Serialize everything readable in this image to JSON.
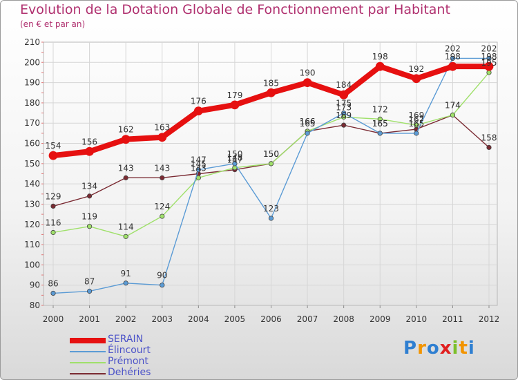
{
  "header": {
    "title": "Evolution de la Dotation Globale de Fonctionnement par Habitant",
    "subtitle": "(en € et par an)"
  },
  "logo": {
    "text": "Proxiti",
    "letters": [
      "P",
      "r",
      "o",
      "x",
      "i",
      "t",
      "i"
    ],
    "colors": [
      "#2f7fd1",
      "#f29400",
      "#2f7fd1",
      "#e02020",
      "#7cbf2a",
      "#f29400",
      "#2f7fd1"
    ]
  },
  "chart_data": {
    "type": "line",
    "title": "Evolution de la Dotation Globale de Fonctionnement par Habitant",
    "subtitle": "(en € et par an)",
    "xlabel": "",
    "ylabel": "",
    "ylim": [
      80,
      210
    ],
    "yticks": [
      80,
      90,
      100,
      110,
      120,
      130,
      140,
      150,
      160,
      170,
      180,
      190,
      200,
      210
    ],
    "categories": [
      "2000",
      "2001",
      "2002",
      "2003",
      "2004",
      "2005",
      "2006",
      "2007",
      "2008",
      "2009",
      "2010",
      "2011",
      "2012"
    ],
    "grid": true,
    "legend_position": "bottom-left",
    "series": [
      {
        "name": "Dehéries",
        "color": "#7a2a32",
        "values": [
          129,
          134,
          143,
          143,
          145,
          147,
          150,
          166,
          169,
          165,
          167,
          174,
          158
        ],
        "labels": [
          "129",
          "134",
          "143",
          "143",
          "145",
          "147",
          "150",
          "166",
          "169",
          "165",
          "167",
          "174",
          "158"
        ]
      },
      {
        "name": "Prémont",
        "color": "#9fe06a",
        "values": [
          116,
          119,
          114,
          124,
          143,
          148,
          150,
          166,
          173,
          172,
          169,
          174,
          195
        ],
        "labels": [
          "116",
          "119",
          "114",
          "124",
          "143",
          "148",
          "150",
          "166",
          "173",
          "172",
          "169",
          "174",
          "195"
        ]
      },
      {
        "name": "Élincourt",
        "color": "#5b9bd5",
        "values": [
          86,
          87,
          91,
          90,
          147,
          150,
          123,
          165,
          175,
          165,
          165,
          202,
          202
        ],
        "labels": [
          "86",
          "87",
          "91",
          "90",
          "147",
          "150",
          "123",
          "165",
          "175",
          "165",
          "165",
          "202",
          "202"
        ]
      },
      {
        "name": "SERAIN",
        "color": "#e61010",
        "values": [
          154,
          156,
          162,
          163,
          176,
          179,
          185,
          190,
          184,
          198,
          192,
          198,
          198
        ],
        "labels": [
          "154",
          "156",
          "162",
          "163",
          "176",
          "179",
          "185",
          "190",
          "184",
          "198",
          "192",
          "198",
          "198"
        ]
      }
    ],
    "legend_order": [
      "SERAIN",
      "Élincourt",
      "Prémont",
      "Dehéries"
    ]
  }
}
